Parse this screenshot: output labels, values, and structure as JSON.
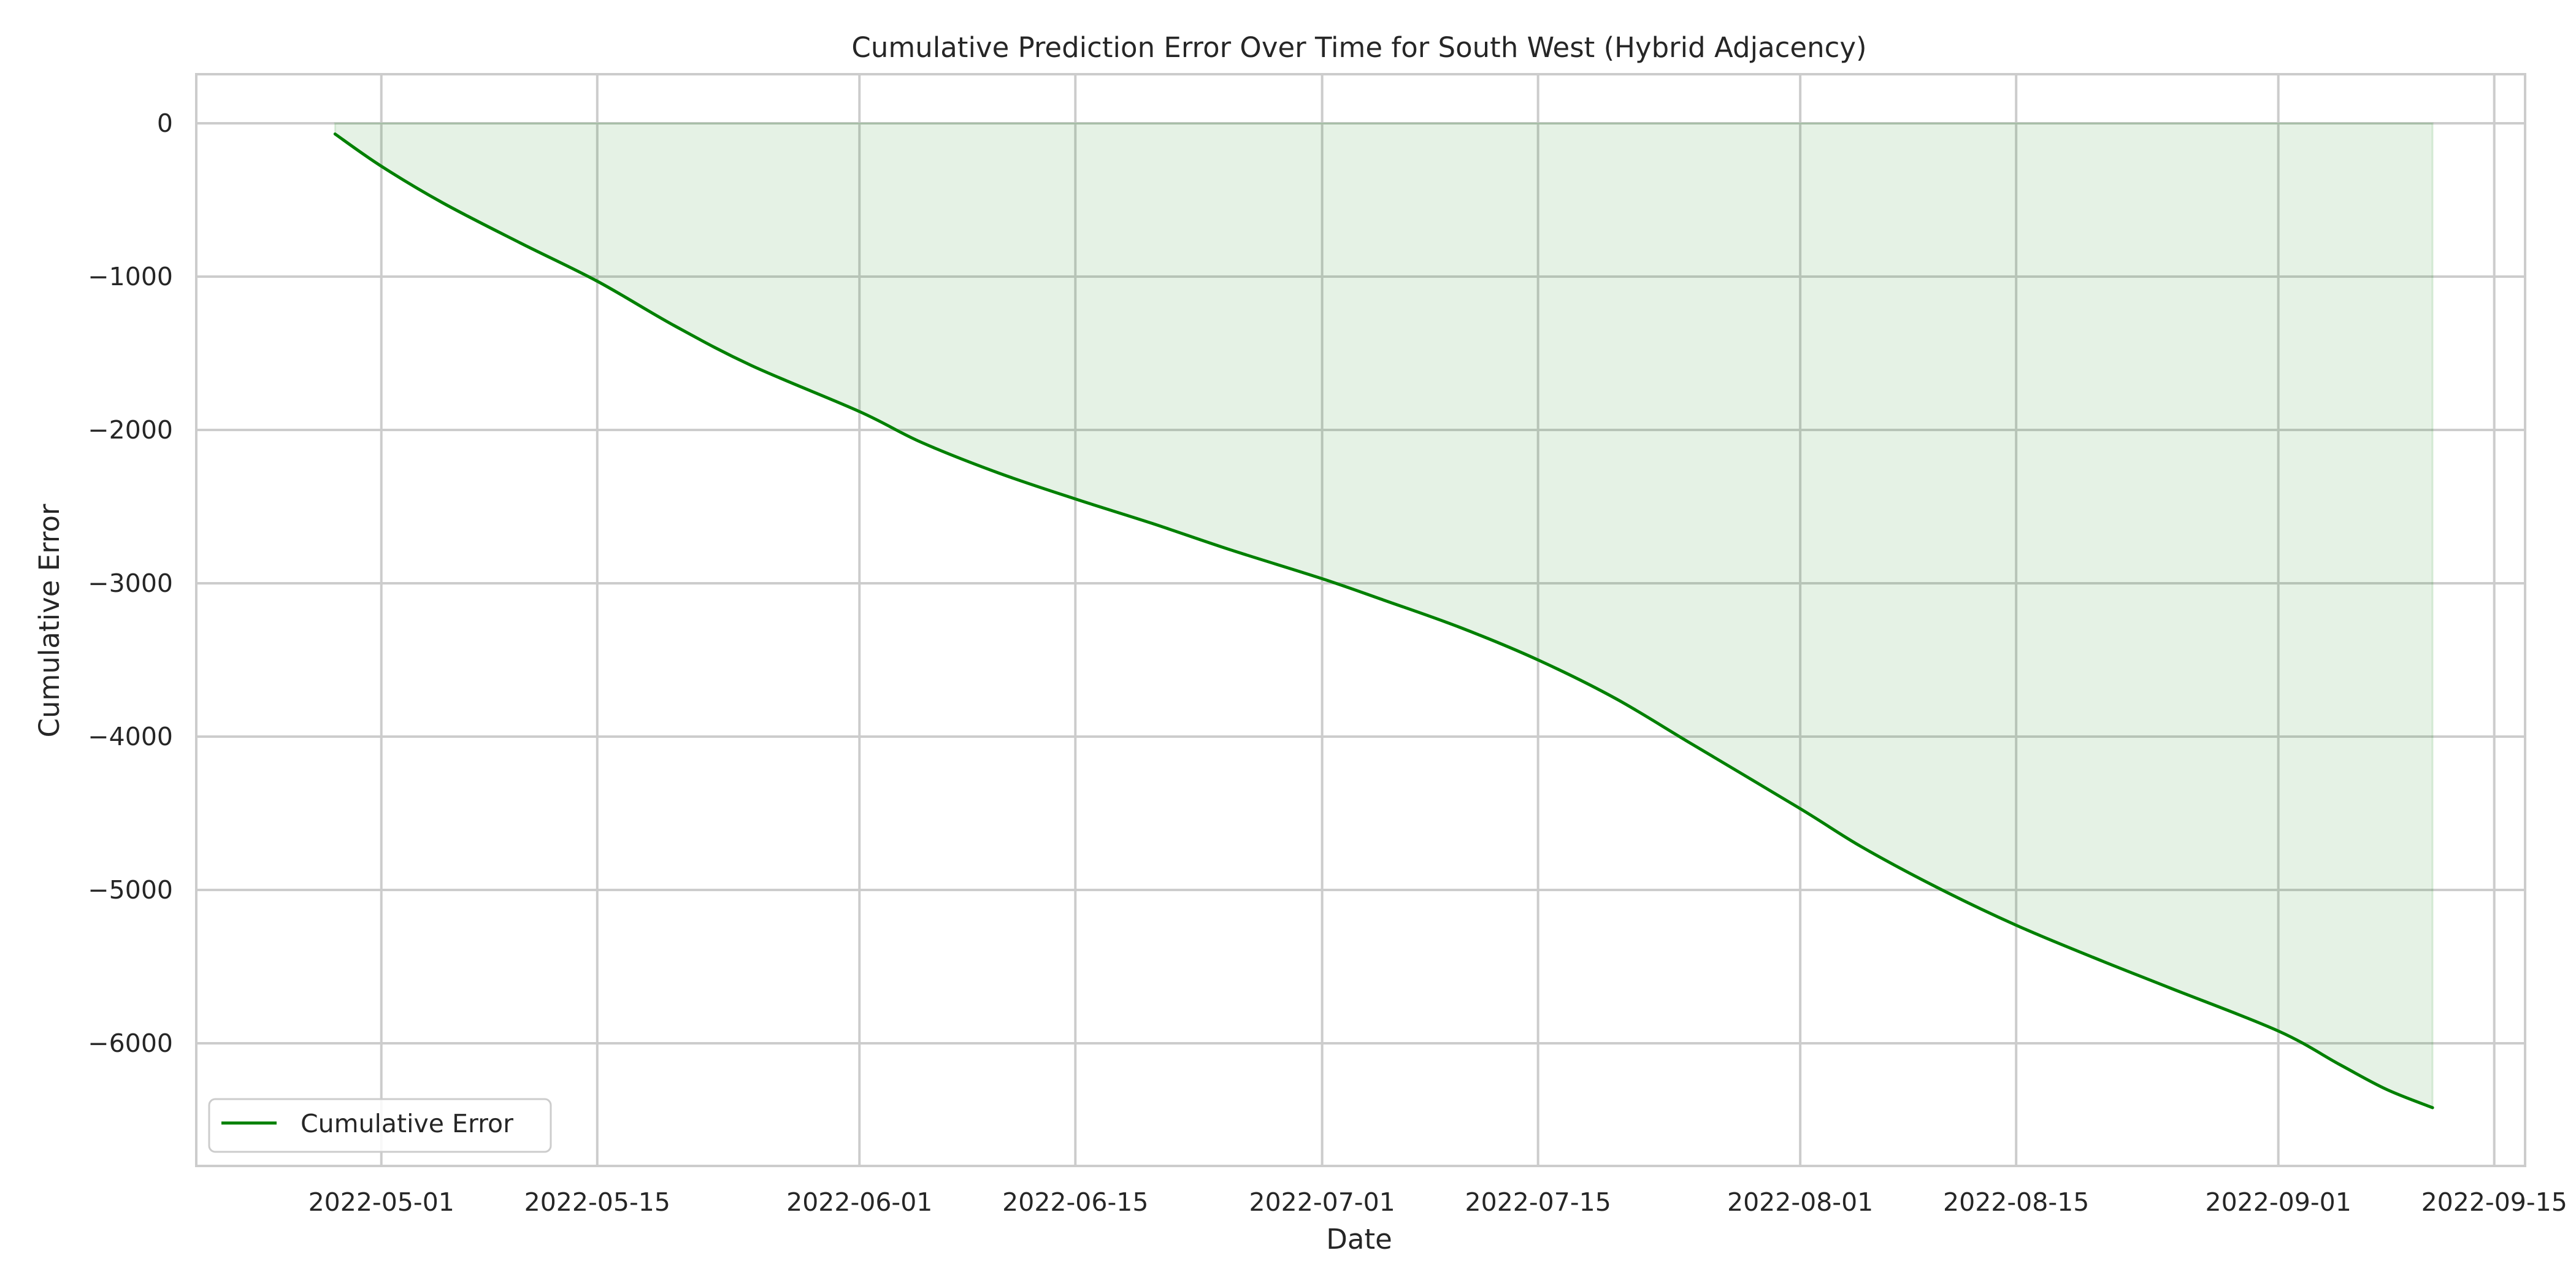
{
  "chart_data": {
    "type": "area",
    "title": "Cumulative Prediction Error Over Time for South West (Hybrid Adjacency)",
    "xlabel": "Date",
    "ylabel": "Cumulative Error",
    "xlim": [
      "2022-04-19",
      "2022-09-17"
    ],
    "ylim": [
      -6800,
      320
    ],
    "x_ticks": [
      "2022-05-01",
      "2022-05-15",
      "2022-06-01",
      "2022-06-15",
      "2022-07-01",
      "2022-07-15",
      "2022-08-01",
      "2022-08-15",
      "2022-09-01",
      "2022-09-15"
    ],
    "x_tick_labels": [
      "2022-05-01",
      "2022-05-15",
      "2022-06-01",
      "2022-06-15",
      "2022-07-01",
      "2022-07-15",
      "2022-08-01",
      "2022-08-15",
      "2022-09-01",
      "2022-09-15"
    ],
    "y_ticks": [
      0,
      -1000,
      -2000,
      -3000,
      -4000,
      -5000,
      -6000
    ],
    "y_tick_labels": [
      "0",
      "−1000",
      "−2000",
      "−3000",
      "−4000",
      "−5000",
      "−6000"
    ],
    "grid": true,
    "legend_position": "lower-left",
    "series": [
      {
        "name": "Cumulative Error",
        "color": "#008000",
        "fill_color": "#008000",
        "fill_opacity": 0.1,
        "x": [
          "2022-04-28",
          "2022-05-01",
          "2022-05-05",
          "2022-05-10",
          "2022-05-15",
          "2022-05-20",
          "2022-05-25",
          "2022-06-01",
          "2022-06-05",
          "2022-06-10",
          "2022-06-15",
          "2022-06-20",
          "2022-06-25",
          "2022-07-01",
          "2022-07-05",
          "2022-07-10",
          "2022-07-15",
          "2022-07-20",
          "2022-07-25",
          "2022-08-01",
          "2022-08-05",
          "2022-08-10",
          "2022-08-15",
          "2022-08-20",
          "2022-08-25",
          "2022-09-01",
          "2022-09-05",
          "2022-09-08",
          "2022-09-11"
        ],
        "values": [
          -70,
          -280,
          -520,
          -780,
          -1030,
          -1320,
          -1580,
          -1880,
          -2080,
          -2280,
          -2450,
          -2610,
          -2780,
          -2970,
          -3110,
          -3290,
          -3500,
          -3750,
          -4050,
          -4470,
          -4720,
          -4990,
          -5230,
          -5440,
          -5640,
          -5920,
          -6140,
          -6300,
          -6420
        ]
      }
    ]
  }
}
